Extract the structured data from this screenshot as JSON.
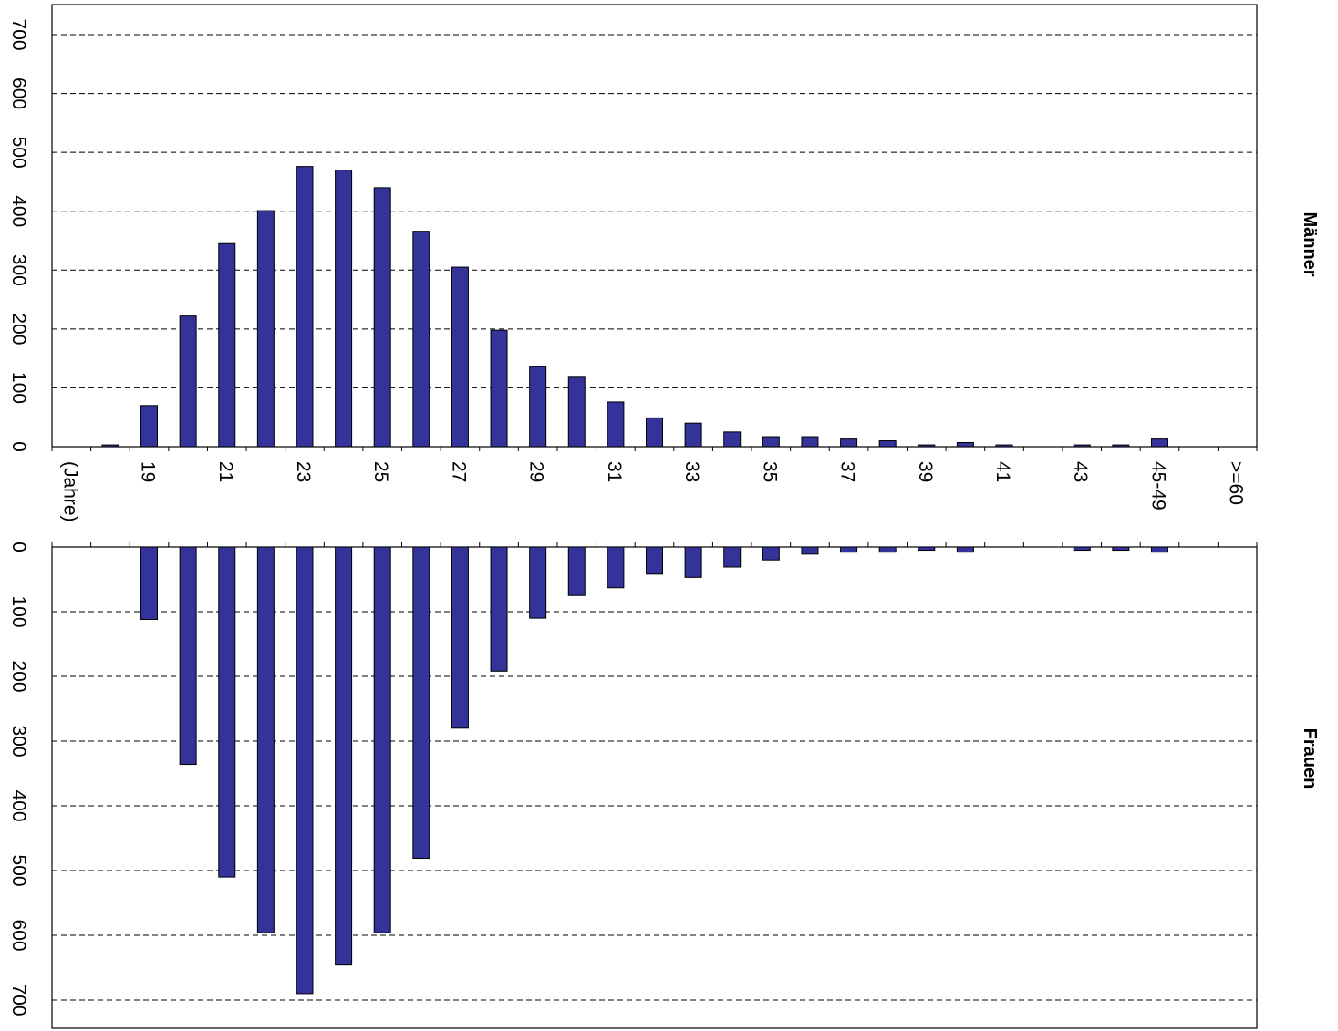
{
  "chart_data": {
    "type": "bar",
    "orientation": "rotated-90-clockwise",
    "categories": [
      "(Jahre)",
      "",
      "19",
      "",
      "21",
      "",
      "23",
      "",
      "25",
      "",
      "27",
      "",
      "29",
      "",
      "31",
      "",
      "33",
      "",
      "35",
      "",
      "37",
      "",
      "39",
      "",
      "41",
      "",
      "43",
      "",
      "45-49",
      "",
      ">=60"
    ],
    "series": [
      {
        "name": "Männer",
        "values": [
          0,
          3,
          70,
          222,
          345,
          401,
          476,
          470,
          440,
          366,
          305,
          198,
          136,
          118,
          76,
          49,
          40,
          25,
          17,
          17,
          13,
          10,
          3,
          7,
          3,
          0,
          3,
          3,
          13,
          0,
          0
        ]
      },
      {
        "name": "Frauen",
        "values": [
          0,
          0,
          112,
          336,
          510,
          596,
          690,
          646,
          596,
          481,
          280,
          192,
          110,
          75,
          63,
          42,
          47,
          31,
          20,
          11,
          8,
          8,
          5,
          8,
          0,
          0,
          5,
          5,
          8,
          0,
          0
        ]
      }
    ],
    "ylim": [
      0,
      700
    ],
    "yticks": [
      0,
      100,
      200,
      300,
      400,
      500,
      600,
      700
    ],
    "grid": true,
    "bar_color": "#333399",
    "bar_edge": "#000000"
  }
}
